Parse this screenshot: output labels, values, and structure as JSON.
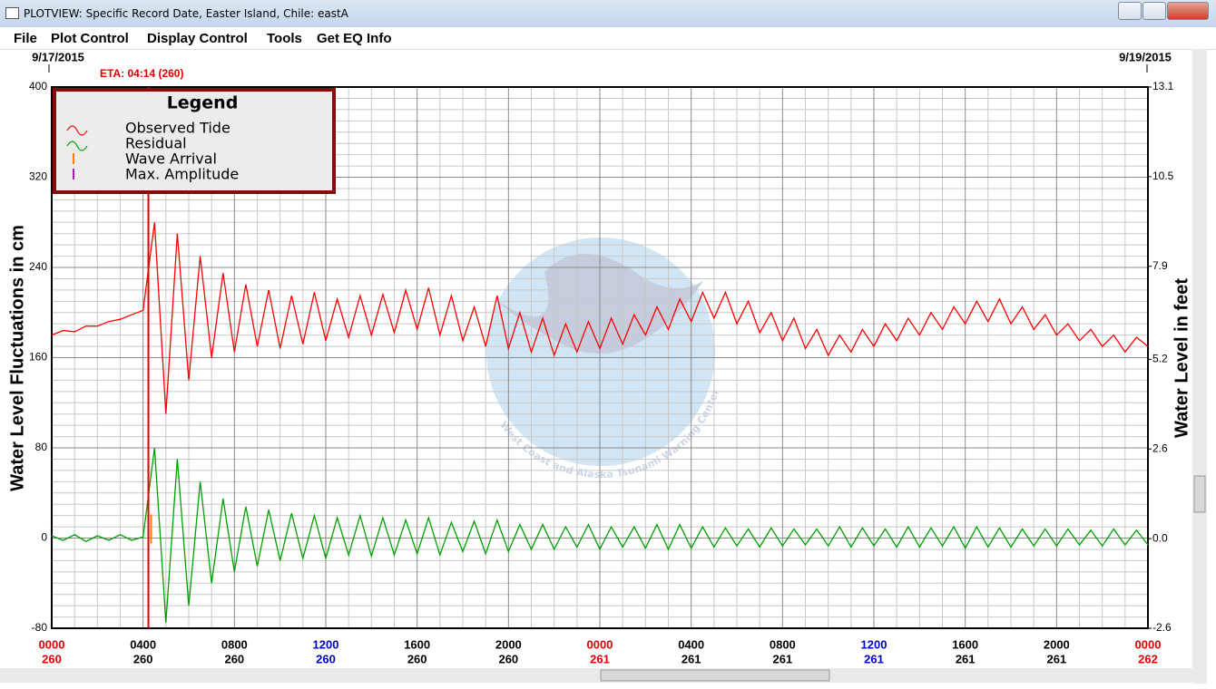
{
  "window_title": "PLOTVIEW: Specific Record Date, Easter Island, Chile: eastA",
  "menu": [
    "File",
    "Plot Control",
    "Display Control",
    "Tools",
    "Get EQ Info"
  ],
  "chart_data": {
    "type": "line",
    "date_labels": [
      "9/17/2015",
      "9/19/2015"
    ],
    "eta": {
      "label": "ETA: 04:14 (260)",
      "x": 4.233,
      "color": "#e00000"
    },
    "ylabel": "Water Level Fluctuations in cm",
    "y2label": "Water Level in feet",
    "watermark": "West Coast and Alaska Tsunami Warning Center",
    "legend": {
      "title": "Legend",
      "position": "upper left",
      "markers": [
        {
          "name": "Wave Arrival",
          "color": "#ff8000",
          "x": 4.35
        },
        {
          "name": "Max. Amplitude",
          "color": "#a020a0"
        }
      ]
    },
    "xlim": [
      0,
      48
    ],
    "xticks": [
      {
        "value": 0,
        "label": "0000",
        "day": "260",
        "color": "#e00000"
      },
      {
        "value": 4,
        "label": "0400",
        "day": "260",
        "color": "#000000"
      },
      {
        "value": 8,
        "label": "0800",
        "day": "260",
        "color": "#000000"
      },
      {
        "value": 12,
        "label": "1200",
        "day": "260",
        "color": "#0000c0"
      },
      {
        "value": 16,
        "label": "1600",
        "day": "260",
        "color": "#000000"
      },
      {
        "value": 20,
        "label": "2000",
        "day": "260",
        "color": "#000000"
      },
      {
        "value": 24,
        "label": "0000",
        "day": "261",
        "color": "#e00000"
      },
      {
        "value": 28,
        "label": "0400",
        "day": "261",
        "color": "#000000"
      },
      {
        "value": 32,
        "label": "0800",
        "day": "261",
        "color": "#000000"
      },
      {
        "value": 36,
        "label": "1200",
        "day": "261",
        "color": "#0000c0"
      },
      {
        "value": 40,
        "label": "1600",
        "day": "261",
        "color": "#000000"
      },
      {
        "value": 44,
        "label": "2000",
        "day": "261",
        "color": "#000000"
      },
      {
        "value": 48,
        "label": "0000",
        "day": "262",
        "color": "#e00000"
      }
    ],
    "ylim": [
      -80,
      400
    ],
    "yticks": [
      -80,
      0,
      80,
      160,
      240,
      320,
      400
    ],
    "y2lim": [
      -2.6,
      13.1
    ],
    "y2ticks": [
      -2.6,
      {
        "value": 0,
        "label": "0.0"
      },
      2.6,
      5.2,
      7.9,
      10.5,
      13.1
    ],
    "grid": true,
    "x": [
      0,
      0.5,
      1,
      1.5,
      2,
      2.5,
      3,
      3.5,
      4,
      4.5,
      5,
      5.5,
      6,
      6.5,
      7,
      7.5,
      8,
      8.5,
      9,
      9.5,
      10,
      10.5,
      11,
      11.5,
      12,
      12.5,
      13,
      13.5,
      14,
      14.5,
      15,
      15.5,
      16,
      16.5,
      17,
      17.5,
      18,
      18.5,
      19,
      19.5,
      20,
      20.5,
      21,
      21.5,
      22,
      22.5,
      23,
      23.5,
      24,
      24.5,
      25,
      25.5,
      26,
      26.5,
      27,
      27.5,
      28,
      28.5,
      29,
      29.5,
      30,
      30.5,
      31,
      31.5,
      32,
      32.5,
      33,
      33.5,
      34,
      34.5,
      35,
      35.5,
      36,
      36.5,
      37,
      37.5,
      38,
      38.5,
      39,
      39.5,
      40,
      40.5,
      41,
      41.5,
      42,
      42.5,
      43,
      43.5,
      44,
      44.5,
      45,
      45.5,
      46,
      46.5,
      47,
      47.5,
      48
    ],
    "series": [
      {
        "name": "Observed Tide",
        "color": "#ff0000",
        "values": [
          180,
          184,
          183,
          188,
          188,
          192,
          194,
          198,
          202,
          280,
          110,
          270,
          140,
          250,
          160,
          235,
          165,
          225,
          170,
          220,
          168,
          215,
          172,
          218,
          175,
          212,
          178,
          215,
          180,
          216,
          182,
          220,
          185,
          222,
          180,
          215,
          175,
          205,
          170,
          215,
          168,
          200,
          165,
          195,
          162,
          190,
          165,
          192,
          168,
          195,
          172,
          198,
          180,
          205,
          185,
          212,
          192,
          218,
          195,
          218,
          190,
          210,
          182,
          200,
          175,
          195,
          168,
          185,
          162,
          180,
          165,
          185,
          170,
          190,
          175,
          195,
          180,
          200,
          185,
          205,
          190,
          210,
          192,
          212,
          190,
          205,
          185,
          198,
          180,
          190,
          175,
          185,
          170,
          180,
          165,
          178,
          170
        ]
      },
      {
        "name": "Residual",
        "color": "#00a000",
        "values": [
          2,
          -2,
          3,
          -3,
          2,
          -2,
          3,
          -2,
          1,
          80,
          -75,
          70,
          -60,
          50,
          -40,
          35,
          -30,
          28,
          -25,
          25,
          -20,
          22,
          -18,
          20,
          -18,
          18,
          -15,
          20,
          -16,
          18,
          -15,
          16,
          -14,
          18,
          -15,
          14,
          -12,
          15,
          -14,
          16,
          -12,
          12,
          -10,
          12,
          -10,
          10,
          -8,
          12,
          -10,
          10,
          -8,
          10,
          -9,
          12,
          -10,
          12,
          -9,
          10,
          -8,
          9,
          -7,
          8,
          -8,
          9,
          -7,
          8,
          -6,
          8,
          -7,
          10,
          -8,
          9,
          -7,
          8,
          -8,
          10,
          -8,
          9,
          -7,
          10,
          -9,
          10,
          -8,
          9,
          -8,
          8,
          -7,
          8,
          -7,
          8,
          -6,
          7,
          -7,
          8,
          -6,
          7,
          -6
        ]
      }
    ]
  }
}
